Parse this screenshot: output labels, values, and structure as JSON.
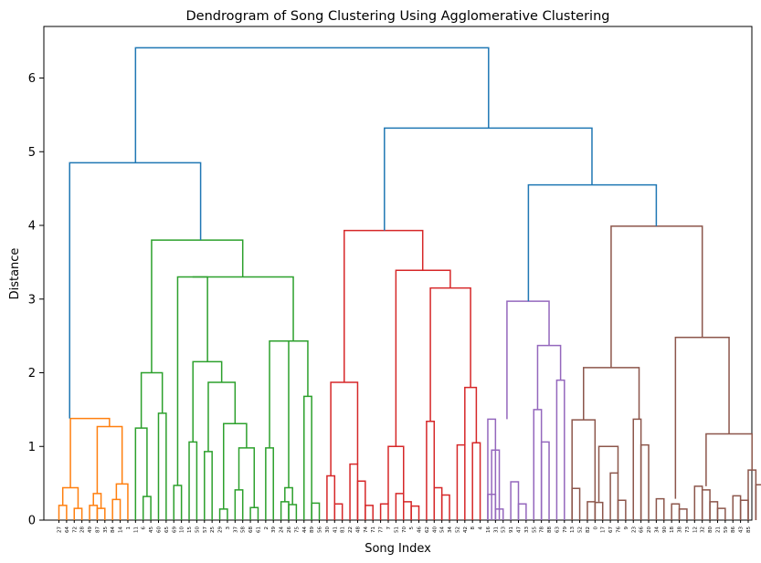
{
  "chart_data": {
    "type": "dendrogram",
    "title": "Dendrogram of Song Clustering Using Agglomerative Clustering",
    "xlabel": "Song Index",
    "ylabel": "Distance",
    "ylim": [
      0,
      6.7
    ],
    "yticks": [
      "0",
      "1",
      "2",
      "3",
      "4",
      "5",
      "6"
    ],
    "leaf_labels": [
      "27",
      "64",
      "72",
      "28",
      "49",
      "87",
      "35",
      "84",
      "14",
      "1",
      "11",
      "6",
      "45",
      "60",
      "65",
      "69",
      "10",
      "15",
      "50",
      "57",
      "25",
      "29",
      "3",
      "37",
      "58",
      "68",
      "61",
      "2",
      "39",
      "24",
      "26",
      "75",
      "44",
      "89",
      "56",
      "30",
      "41",
      "81",
      "22",
      "48",
      "74",
      "71",
      "77",
      "7",
      "51",
      "70",
      "5",
      "46",
      "62",
      "40",
      "54",
      "34",
      "52",
      "42",
      "8",
      "4",
      "16",
      "31",
      "53",
      "91",
      "47",
      "33",
      "55",
      "78",
      "88",
      "63",
      "79",
      "13",
      "52",
      "82",
      "0",
      "17",
      "67",
      "76",
      "9",
      "23",
      "66",
      "20",
      "34",
      "90",
      "18",
      "38",
      "73",
      "12",
      "32",
      "80",
      "21",
      "59",
      "86",
      "43",
      "85"
    ],
    "colors": {
      "above": "#1f77b4",
      "c1": "#ff7f0e",
      "c2": "#2ca02c",
      "c3": "#d62728",
      "c4": "#9467bd",
      "c5": "#8c564b"
    },
    "links": [
      {
        "x1": 1,
        "x2": 2,
        "y1": 0,
        "y2": 0,
        "h": 0.19,
        "c": "c1"
      },
      {
        "x1": 3,
        "x2": 4,
        "y1": 0,
        "y2": 0,
        "h": 0.16,
        "c": "c1"
      },
      {
        "x1": 1.5,
        "x2": 3.5,
        "y1": 0.19,
        "y2": 0.16,
        "h": 0.44,
        "c": "c1"
      },
      {
        "x1": 5,
        "x2": 6,
        "y1": 0,
        "y2": 0,
        "h": 0.19,
        "c": "c1"
      },
      {
        "x1": 6,
        "x2": 7,
        "y1": 0,
        "y2": 0,
        "h": 0.16,
        "c": "c1"
      },
      {
        "x1": 5.5,
        "x2": 6.5,
        "y1": 0.19,
        "y2": 0.16,
        "h": 0.36,
        "c": "c1"
      },
      {
        "x1": 8,
        "x2": 9,
        "y1": 0,
        "y2": 0,
        "h": 0.28,
        "c": "c1"
      },
      {
        "x1": 8.5,
        "x2": 9.5,
        "y1": 0,
        "y2": 0.28,
        "h": 0.49,
        "c": "c1"
      },
      {
        "x1": 6,
        "x2": 9,
        "y1": 0.36,
        "y2": 0.49,
        "h": 1.27,
        "c": "c1"
      },
      {
        "x1": 2.5,
        "x2": 7.5,
        "y1": 0.44,
        "y2": 1.27,
        "h": 1.38,
        "c": "c1"
      },
      {
        "x1": 12,
        "x2": 13,
        "y1": 0,
        "y2": 0,
        "h": 0.32,
        "c": "c2"
      },
      {
        "x1": 11,
        "x2": 12.5,
        "y1": 0,
        "y2": 0.32,
        "h": 1.25,
        "c": "c2"
      },
      {
        "x1": 14,
        "x2": 15,
        "y1": 0,
        "y2": 0,
        "h": 1.45,
        "c": "c2"
      },
      {
        "x1": 11.75,
        "x2": 14.5,
        "y1": 1.25,
        "y2": 1.45,
        "h": 2.0,
        "c": "c2"
      },
      {
        "x1": 16,
        "x2": 17,
        "y1": 0,
        "y2": 0,
        "h": 0.47,
        "c": "c2"
      },
      {
        "x1": 18,
        "x2": 19,
        "y1": 0,
        "y2": 0,
        "h": 1.06,
        "c": "c2"
      },
      {
        "x1": 20,
        "x2": 21,
        "y1": 0,
        "y2": 0,
        "h": 0.93,
        "c": "c2"
      },
      {
        "x1": 22,
        "x2": 23,
        "y1": 0,
        "y2": 0,
        "h": 0.15,
        "c": "c2"
      },
      {
        "x1": 23,
        "x2": 24,
        "y1": 0,
        "y2": 0,
        "h": 0.41,
        "c": "c2"
      },
      {
        "x1": 25,
        "x2": 26,
        "y1": 0,
        "y2": 0,
        "h": 0.17,
        "c": "c2"
      },
      {
        "x1": 24.5,
        "x2": 25.5,
        "y1": 0.41,
        "y2": 0.17,
        "h": 0.98,
        "c": "c2"
      },
      {
        "x1": 22.5,
        "x2": 25,
        "y1": 0.15,
        "y2": 0.98,
        "h": 1.31,
        "c": "c2"
      },
      {
        "x1": 20.5,
        "x2": 23.75,
        "y1": 0.93,
        "y2": 1.31,
        "h": 1.87,
        "c": "c2"
      },
      {
        "x1": 18.5,
        "x2": 22.1,
        "y1": 1.06,
        "y2": 1.87,
        "h": 2.15,
        "c": "c2"
      },
      {
        "x1": 16.5,
        "x2": 20.3,
        "y1": 0.47,
        "y2": 2.15,
        "h": 3.3,
        "c": "c2"
      },
      {
        "x1": 27,
        "x2": 28,
        "y1": 0,
        "y2": 0,
        "h": 0.98,
        "c": "c2"
      },
      {
        "x1": 29,
        "x2": 30,
        "y1": 0,
        "y2": 0,
        "h": 0.25,
        "c": "c2"
      },
      {
        "x1": 30,
        "x2": 31,
        "y1": 0,
        "y2": 0,
        "h": 0.21,
        "c": "c2"
      },
      {
        "x1": 29.5,
        "x2": 30.5,
        "y1": 0.25,
        "y2": 0.21,
        "h": 0.44,
        "c": "c2"
      },
      {
        "x1": 27.5,
        "x2": 30,
        "y1": 0.98,
        "y2": 0.44,
        "h": 2.43,
        "c": "c2"
      },
      {
        "x1": 32,
        "x2": 33,
        "y1": 0,
        "y2": 0,
        "h": 1.68,
        "c": "c2"
      },
      {
        "x1": 33,
        "x2": 34,
        "y1": 0,
        "y2": 0,
        "h": 0.23,
        "c": "c2"
      },
      {
        "x1": 28.75,
        "x2": 32.5,
        "y1": 2.43,
        "y2": 1.68,
        "h": 2.43,
        "c": "c2"
      },
      {
        "x1": 18.4,
        "x2": 30.6,
        "y1": 3.3,
        "y2": 2.43,
        "h": 3.3,
        "c": "c2"
      },
      {
        "x1": 14,
        "x2": 24.5,
        "y1": 2.0,
        "y2": 3.3,
        "h": 3.8,
        "c": "c2"
      },
      {
        "x1": 35,
        "x2": 36,
        "y1": 0,
        "y2": 0,
        "h": 0.6,
        "c": "c3"
      },
      {
        "x1": 36,
        "x2": 37,
        "y1": 0,
        "y2": 0,
        "h": 0.22,
        "c": "c3"
      },
      {
        "x1": 38,
        "x2": 39,
        "y1": 0,
        "y2": 0,
        "h": 0.76,
        "c": "c3"
      },
      {
        "x1": 39,
        "x2": 40,
        "y1": 0,
        "y2": 0,
        "h": 0.53,
        "c": "c3"
      },
      {
        "x1": 40,
        "x2": 41,
        "y1": 0,
        "y2": 0,
        "h": 0.2,
        "c": "c3"
      },
      {
        "x1": 42,
        "x2": 43,
        "y1": 0,
        "y2": 0,
        "h": 0.22,
        "c": "c3"
      },
      {
        "x1": 44,
        "x2": 45,
        "y1": 0,
        "y2": 0,
        "h": 0.36,
        "c": "c3"
      },
      {
        "x1": 45,
        "x2": 46,
        "y1": 0,
        "y2": 0,
        "h": 0.25,
        "c": "c3"
      },
      {
        "x1": 46,
        "x2": 47,
        "y1": 0,
        "y2": 0,
        "h": 0.19,
        "c": "c3"
      },
      {
        "x1": 48,
        "x2": 49,
        "y1": 0,
        "y2": 0,
        "h": 1.34,
        "c": "c3"
      },
      {
        "x1": 49,
        "x2": 50,
        "y1": 0,
        "y2": 0,
        "h": 0.44,
        "c": "c3"
      },
      {
        "x1": 50,
        "x2": 51,
        "y1": 0,
        "y2": 0,
        "h": 0.34,
        "c": "c3"
      },
      {
        "x1": 52,
        "x2": 53,
        "y1": 0,
        "y2": 0,
        "h": 1.02,
        "c": "c3"
      },
      {
        "x1": 54,
        "x2": 55,
        "y1": 0,
        "y2": 0,
        "h": 1.05,
        "c": "c3"
      },
      {
        "x1": 53,
        "x2": 54.5,
        "y1": 1.02,
        "y2": 1.05,
        "h": 1.8,
        "c": "c3"
      },
      {
        "x1": 56,
        "x2": 57,
        "y1": 0,
        "y2": 0,
        "h": 0.35,
        "c": "c4"
      },
      {
        "x1": 57,
        "x2": 58,
        "y1": 0,
        "y2": 0,
        "h": 0.15,
        "c": "c4"
      },
      {
        "x1": 59,
        "x2": 60,
        "y1": 0,
        "y2": 0,
        "h": 0.52,
        "c": "c4"
      },
      {
        "x1": 60,
        "x2": 61,
        "y1": 0,
        "y2": 0,
        "h": 0.22,
        "c": "c4"
      },
      {
        "x1": 62,
        "x2": 63,
        "y1": 0,
        "y2": 0,
        "h": 1.5,
        "c": "c4"
      },
      {
        "x1": 63,
        "x2": 64,
        "y1": 0,
        "y2": 0,
        "h": 1.06,
        "c": "c4"
      },
      {
        "x1": 65,
        "x2": 66,
        "y1": 0,
        "y2": 0,
        "h": 1.9,
        "c": "c4"
      },
      {
        "x1": 67,
        "x2": 68,
        "y1": 0,
        "y2": 0,
        "h": 0.43,
        "c": "c5"
      },
      {
        "x1": 69,
        "x2": 70,
        "y1": 0,
        "y2": 0,
        "h": 0.25,
        "c": "c5"
      },
      {
        "x1": 70,
        "x2": 71,
        "y1": 0,
        "y2": 0,
        "h": 0.24,
        "c": "c5"
      },
      {
        "x1": 72,
        "x2": 73,
        "y1": 0,
        "y2": 0,
        "h": 0.64,
        "c": "c5"
      },
      {
        "x1": 73,
        "x2": 74,
        "y1": 0,
        "y2": 0,
        "h": 0.27,
        "c": "c5"
      },
      {
        "x1": 75,
        "x2": 76,
        "y1": 0,
        "y2": 0,
        "h": 1.37,
        "c": "c5"
      },
      {
        "x1": 76,
        "x2": 77,
        "y1": 0,
        "y2": 0,
        "h": 1.02,
        "c": "c5"
      },
      {
        "x1": 78,
        "x2": 79,
        "y1": 0,
        "y2": 0,
        "h": 0.29,
        "c": "c5"
      },
      {
        "x1": 80,
        "x2": 81,
        "y1": 0,
        "y2": 0,
        "h": 0.22,
        "c": "c5"
      },
      {
        "x1": 81,
        "x2": 82,
        "y1": 0,
        "y2": 0,
        "h": 0.15,
        "c": "c5"
      },
      {
        "x1": 83,
        "x2": 84,
        "y1": 0,
        "y2": 0,
        "h": 0.46,
        "c": "c5"
      },
      {
        "x1": 84,
        "x2": 85,
        "y1": 0,
        "y2": 0,
        "h": 0.41,
        "c": "c5"
      },
      {
        "x1": 85,
        "x2": 86,
        "y1": 0,
        "y2": 0,
        "h": 0.25,
        "c": "c5"
      },
      {
        "x1": 86,
        "x2": 87,
        "y1": 0,
        "y2": 0,
        "h": 0.16,
        "c": "c5"
      },
      {
        "x1": 88,
        "x2": 89,
        "y1": 0,
        "y2": 0,
        "h": 0.33,
        "c": "c5"
      },
      {
        "x1": 89,
        "x2": 90,
        "y1": 0,
        "y2": 0,
        "h": 0.27,
        "c": "c5"
      },
      {
        "x1": 90,
        "x2": 91,
        "y1": 0,
        "y2": 0,
        "h": 0.68,
        "c": "c5"
      },
      {
        "x1": 91,
        "x2": 92,
        "y1": 0,
        "y2": 0,
        "h": 0.48,
        "c": "c5"
      }
    ],
    "tree": [
      [
        0,
        0.2,
        1
      ],
      [
        0,
        0.17,
        1
      ]
    ]
  }
}
